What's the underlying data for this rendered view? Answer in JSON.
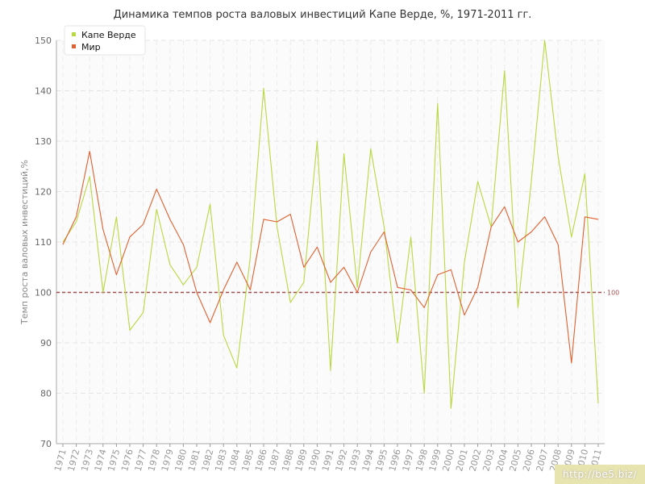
{
  "chart_data": {
    "type": "line",
    "title": "Динамика темпов роста валовых инвестиций Капе Верде, %, 1971-2011 гг.",
    "ylabel": "Темп роста валовых инвестиций,%",
    "xlabel": "",
    "ylim": [
      70,
      150
    ],
    "yticks": [
      70,
      80,
      90,
      100,
      110,
      120,
      130,
      140,
      150
    ],
    "grid": true,
    "legend_position": "top-left",
    "reference_line": {
      "value": 100,
      "label": "100",
      "color": "#a05050"
    },
    "x": [
      "1971",
      "1972",
      "1973",
      "1974",
      "1975",
      "1976",
      "1977",
      "1978",
      "1979",
      "1980",
      "1981",
      "1982",
      "1983",
      "1984",
      "1985",
      "1986",
      "1987",
      "1988",
      "1989",
      "1990",
      "1991",
      "1992",
      "1993",
      "1994",
      "1995",
      "1996",
      "1997",
      "1998",
      "1999",
      "2000",
      "2001",
      "2002",
      "2003",
      "2004",
      "2005",
      "2006",
      "2007",
      "2008",
      "2009",
      "2010",
      "2011"
    ],
    "series": [
      {
        "name": "Капе Верде",
        "color": "#b8d840",
        "values": [
          110,
          114,
          123,
          100,
          115,
          92.5,
          96,
          116.5,
          105.5,
          101.5,
          105,
          117.5,
          91.5,
          85,
          107,
          140.5,
          113,
          98,
          102,
          130,
          84.5,
          127.5,
          101,
          128.5,
          113,
          90,
          111,
          80,
          137.5,
          77,
          106,
          122,
          113,
          144,
          97,
          122,
          150,
          127,
          111,
          123.5,
          78
        ]
      },
      {
        "name": "Мир",
        "color": "#e06030",
        "values": [
          109.5,
          115,
          128,
          112.5,
          103.5,
          111,
          113.5,
          120.5,
          114.5,
          109.5,
          100,
          94,
          100.5,
          106,
          100.5,
          114.5,
          114,
          115.5,
          105,
          109,
          102,
          105,
          100,
          108,
          112,
          101,
          100.5,
          97,
          103.5,
          104.5,
          95.5,
          101,
          113,
          117,
          110,
          112,
          115,
          109.5,
          86,
          115,
          114.5
        ]
      }
    ]
  },
  "watermark": "http://be5.biz/"
}
